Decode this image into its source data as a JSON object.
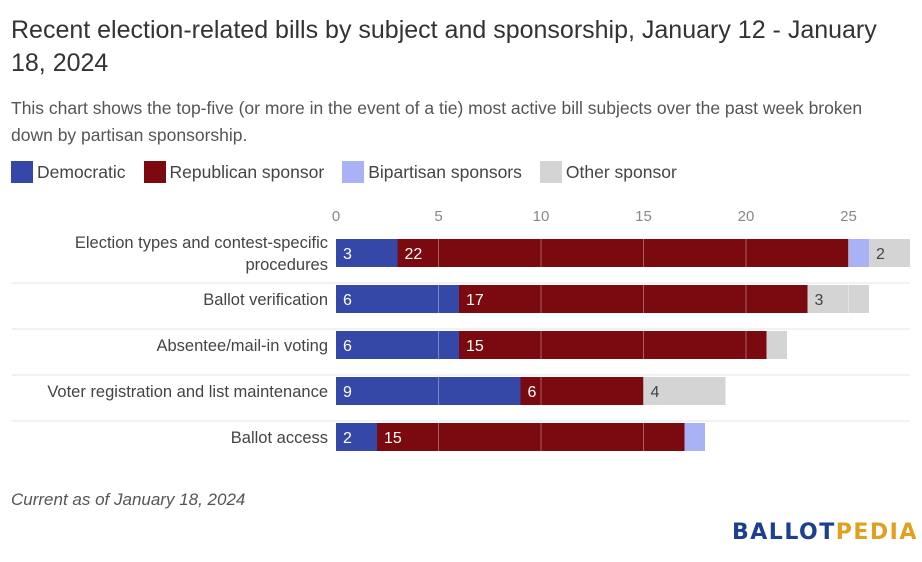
{
  "chart_data": {
    "type": "bar",
    "orientation": "horizontal",
    "stacked": true,
    "title": "Recent election-related bills by subject and sponsorship, January 12 - January 18, 2024",
    "subtitle": "This chart shows the top-five (or more in the event of a tie) most active bill subjects over the past week broken down by partisan sponsorship.",
    "categories": [
      [
        "Election types and contest-specific",
        "procedures"
      ],
      [
        "Ballot verification"
      ],
      [
        "Absentee/mail-in voting"
      ],
      [
        "Voter registration and list maintenance"
      ],
      [
        "Ballot access"
      ]
    ],
    "series": [
      {
        "name": "Democratic",
        "color": "#3548a8",
        "values": [
          3,
          6,
          6,
          9,
          2
        ],
        "show_labels": [
          true,
          true,
          true,
          true,
          true
        ]
      },
      {
        "name": "Republican sponsor",
        "color": "#7a0a0f",
        "values": [
          22,
          17,
          15,
          6,
          15
        ],
        "show_labels": [
          true,
          true,
          true,
          true,
          true
        ]
      },
      {
        "name": "Bipartisan sponsors",
        "color": "#a9b2f5",
        "values": [
          1,
          0,
          0,
          0,
          1
        ],
        "show_labels": [
          false,
          false,
          false,
          false,
          false
        ]
      },
      {
        "name": "Other sponsor",
        "color": "#d4d4d4",
        "values": [
          2,
          3,
          1,
          4,
          0
        ],
        "show_labels": [
          true,
          true,
          false,
          true,
          false
        ]
      }
    ],
    "xlim": [
      0,
      28
    ],
    "xticks": [
      0,
      5,
      10,
      15,
      20,
      25
    ],
    "grid": true,
    "legend_position": "top-left"
  },
  "footnote": "Current as of January 18, 2024",
  "logo": {
    "part1": "BALLOT",
    "part2": "PEDIA",
    "color1": "#1d3f8f",
    "color2": "#e0a020"
  }
}
